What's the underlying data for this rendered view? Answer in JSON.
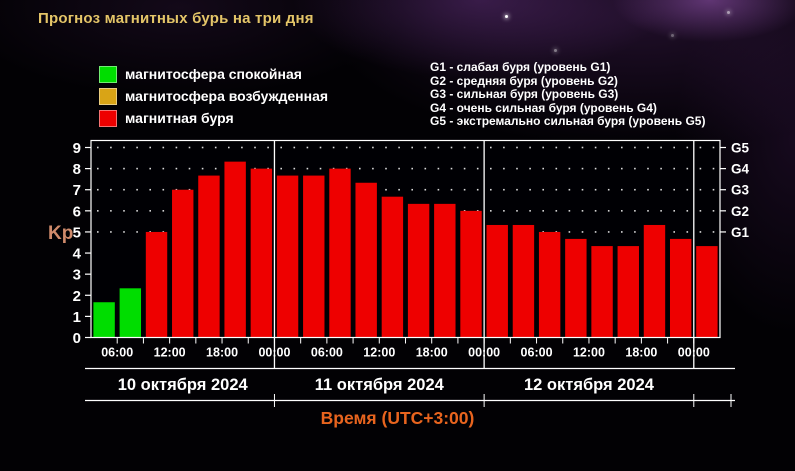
{
  "title": "Прогноз магнитных бурь на три дня",
  "legend": {
    "items": [
      {
        "label": "магнитосфера спокойная",
        "color": "#00dd00"
      },
      {
        "label": "магнитосфера возбужденная",
        "color": "#d9a416"
      },
      {
        "label": "магнитная буря",
        "color": "#ee0000"
      }
    ]
  },
  "storm_levels_legend": {
    "lines": [
      "G1 - слабая буря (уровень G1)",
      "G2 - средняя буря (уровень G2)",
      "G3 - сильная буря (уровень G3)",
      "G4 - очень сильная буря (уровень G4)",
      "G5 - экстремально сильная буря (уровень G5)"
    ]
  },
  "colors": {
    "quiet": "#00dd00",
    "excited": "#d9a416",
    "storm": "#ee0000",
    "axis": "#ffffff",
    "title": "#e4c568",
    "kp_label": "#cf8a6b",
    "xlabel_text": "#e8641e"
  },
  "chart_data": {
    "type": "bar",
    "ylabel": "Kp",
    "xlabel": "Время (UTC+3:00)",
    "ylim": [
      0,
      9.33
    ],
    "yticks": [
      0,
      1,
      2,
      3,
      4,
      5,
      6,
      7,
      8,
      9
    ],
    "grid_dotted_kp": [
      5,
      6,
      7,
      8,
      9
    ],
    "storm_threshold_kp": 4,
    "bar_interval_hours": 3,
    "days": [
      {
        "date_label": "10 октября 2024",
        "start_hour": 3,
        "values": [
          1.67,
          2.33,
          5.0,
          7.0,
          7.67,
          8.33,
          8.0
        ]
      },
      {
        "date_label": "11 октября 2024",
        "start_hour": 24,
        "values": [
          7.67,
          7.67,
          8.0,
          7.33,
          6.67,
          6.33,
          6.33,
          6.0
        ]
      },
      {
        "date_label": "12 октября 2024",
        "start_hour": 48,
        "values": [
          5.33,
          5.33,
          5.0,
          4.67,
          4.33,
          4.33,
          5.33,
          4.67
        ]
      },
      {
        "date_label": "",
        "start_hour": 72,
        "values": [
          4.33
        ]
      }
    ],
    "day_divider_hours": [
      24,
      48,
      72
    ],
    "time_ticks": [
      {
        "hour": 6,
        "label": "06:00"
      },
      {
        "hour": 12,
        "label": "12:00"
      },
      {
        "hour": 18,
        "label": "18:00"
      },
      {
        "hour": 24,
        "label": "00:00"
      },
      {
        "hour": 30,
        "label": "06:00"
      },
      {
        "hour": 36,
        "label": "12:00"
      },
      {
        "hour": 42,
        "label": "18:00"
      },
      {
        "hour": 48,
        "label": "00:00"
      },
      {
        "hour": 54,
        "label": "06:00"
      },
      {
        "hour": 60,
        "label": "12:00"
      },
      {
        "hour": 66,
        "label": "18:00"
      },
      {
        "hour": 72,
        "label": "00:00"
      }
    ],
    "right_axis_labels": [
      {
        "label": "G5",
        "kp": 9
      },
      {
        "label": "G4",
        "kp": 8
      },
      {
        "label": "G3",
        "kp": 7
      },
      {
        "label": "G2",
        "kp": 6
      },
      {
        "label": "G1",
        "kp": 5
      }
    ],
    "legend_position": "top",
    "grid": "dotted horizontal at G-levels"
  }
}
